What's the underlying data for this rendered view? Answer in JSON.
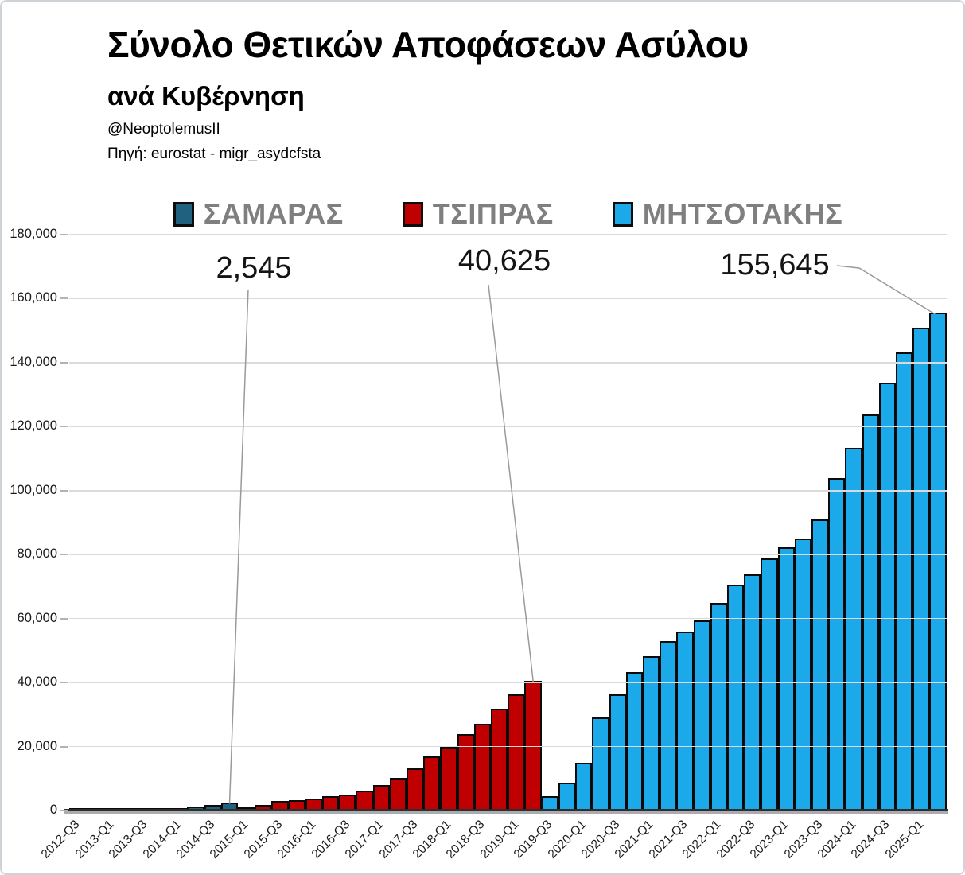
{
  "header": {
    "title": "Σύνολο Θετικών Αποφάσεων Ασύλου",
    "subtitle": "ανά Κυβέρνηση",
    "handle": "@NeoptolemusII",
    "source": "Πηγή: eurostat - migr_asydcfsta"
  },
  "chart_data": {
    "type": "bar",
    "title": "Σύνολο Θετικών Αποφάσεων Ασύλου",
    "subtitle": "ανά Κυβέρνηση",
    "source": "Πηγή: eurostat - migr_asydcfsta",
    "ylabel": "",
    "xlabel": "",
    "grid": "horizontal",
    "legend_position": "top",
    "y_axis": {
      "min": 0,
      "max": 180000,
      "step": 20000
    },
    "x_tick_every": 2,
    "categories": [
      "2012-Q3",
      "2012-Q4",
      "2013-Q1",
      "2013-Q2",
      "2013-Q3",
      "2013-Q4",
      "2014-Q1",
      "2014-Q2",
      "2014-Q3",
      "2014-Q4",
      "2015-Q1",
      "2015-Q2",
      "2015-Q3",
      "2015-Q4",
      "2016-Q1",
      "2016-Q2",
      "2016-Q3",
      "2016-Q4",
      "2017-Q1",
      "2017-Q2",
      "2017-Q3",
      "2017-Q4",
      "2018-Q1",
      "2018-Q2",
      "2018-Q3",
      "2018-Q4",
      "2019-Q1",
      "2019-Q2",
      "2019-Q3",
      "2019-Q4",
      "2020-Q1",
      "2020-Q2",
      "2020-Q3",
      "2020-Q4",
      "2021-Q1",
      "2021-Q2",
      "2021-Q3",
      "2021-Q4",
      "2022-Q1",
      "2022-Q2",
      "2022-Q3",
      "2022-Q4",
      "2023-Q1",
      "2023-Q2",
      "2023-Q3",
      "2023-Q4",
      "2024-Q1",
      "2024-Q2",
      "2024-Q3",
      "2024-Q4",
      "2025-Q1",
      "2025-Q2"
    ],
    "series": [
      {
        "name": "ΣΑΜΑΡΑΣ",
        "color": "#20617F",
        "quarters": "2012-Q3 to 2014-Q4",
        "values": [
          40,
          90,
          160,
          260,
          400,
          600,
          850,
          1200,
          1750,
          2545
        ]
      },
      {
        "name": "ΤΣΙΠΡΑΣ",
        "color": "#C00000",
        "quarters": "2015-Q1 to 2019-Q2",
        "values": [
          1100,
          1800,
          3000,
          3300,
          3800,
          4400,
          5000,
          6100,
          8000,
          10300,
          13100,
          16900,
          20000,
          23900,
          27200,
          31800,
          36400,
          40625
        ]
      },
      {
        "name": "ΜΗΤΣΟΤΑΚΗΣ",
        "color": "#1CA9EA",
        "quarters": "2019-Q3 to 2025-Q2",
        "values": [
          4400,
          8800,
          15000,
          29100,
          36300,
          43300,
          48300,
          52900,
          56000,
          59500,
          64800,
          70700,
          73800,
          78900,
          82300,
          85000,
          90900,
          104000,
          113300,
          123900,
          133800,
          143200,
          150800,
          155645
        ]
      }
    ],
    "annotations": [
      {
        "text": "2,545",
        "category": "2014-Q4",
        "value": 2545
      },
      {
        "text": "40,625",
        "category": "2019-Q2",
        "value": 40625
      },
      {
        "text": "155,645",
        "category": "2025-Q2",
        "value": 155645
      }
    ]
  }
}
